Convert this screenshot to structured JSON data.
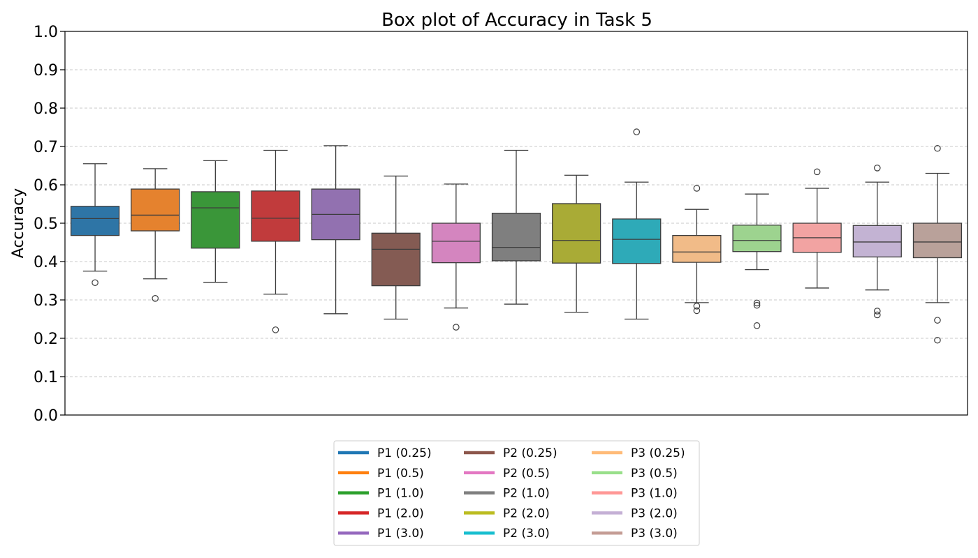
{
  "chart_data": {
    "type": "box",
    "title": "Box plot of Accuracy in Task 5",
    "xlabel": "",
    "ylabel": "Accuracy",
    "ylim": [
      0.0,
      1.0
    ],
    "yticks": [
      "0.0",
      "0.1",
      "0.2",
      "0.3",
      "0.4",
      "0.5",
      "0.6",
      "0.7",
      "0.8",
      "0.9",
      "1.0"
    ],
    "grid": "horizontal dashed",
    "legend_position": "below center",
    "series": [
      {
        "name": "P1 (0.25)",
        "color": "#2e75a6",
        "legend_color": "#1f77b4",
        "whislo": 0.375,
        "q1": 0.468,
        "median": 0.512,
        "q3": 0.544,
        "whishi": 0.655,
        "fliers": [
          0.345
        ]
      },
      {
        "name": "P1 (0.5)",
        "color": "#e5822e",
        "legend_color": "#ff7f0e",
        "whislo": 0.355,
        "q1": 0.48,
        "median": 0.521,
        "q3": 0.589,
        "whishi": 0.642,
        "fliers": [
          0.304
        ]
      },
      {
        "name": "P1 (1.0)",
        "color": "#3a9639",
        "legend_color": "#2ca02c",
        "whislo": 0.346,
        "q1": 0.435,
        "median": 0.54,
        "q3": 0.582,
        "whishi": 0.663,
        "fliers": []
      },
      {
        "name": "P1 (2.0)",
        "color": "#c13b3c",
        "legend_color": "#d62728",
        "whislo": 0.315,
        "q1": 0.453,
        "median": 0.513,
        "q3": 0.584,
        "whishi": 0.69,
        "fliers": [
          0.222
        ]
      },
      {
        "name": "P1 (3.0)",
        "color": "#9271b0",
        "legend_color": "#9467bd",
        "whislo": 0.264,
        "q1": 0.457,
        "median": 0.523,
        "q3": 0.589,
        "whishi": 0.702,
        "fliers": []
      },
      {
        "name": "P2 (0.25)",
        "color": "#845b53",
        "legend_color": "#8c564b",
        "whislo": 0.25,
        "q1": 0.337,
        "median": 0.432,
        "q3": 0.474,
        "whishi": 0.623,
        "fliers": []
      },
      {
        "name": "P2 (0.5)",
        "color": "#d485bf",
        "legend_color": "#e377c2",
        "whislo": 0.279,
        "q1": 0.397,
        "median": 0.453,
        "q3": 0.5,
        "whishi": 0.602,
        "fliers": [
          0.229
        ]
      },
      {
        "name": "P2 (1.0)",
        "color": "#7f7f7f",
        "legend_color": "#7f7f7f",
        "whislo": 0.289,
        "q1": 0.402,
        "median": 0.437,
        "q3": 0.526,
        "whishi": 0.69,
        "fliers": []
      },
      {
        "name": "P2 (2.0)",
        "color": "#a9ab36",
        "legend_color": "#bcbd22",
        "whislo": 0.268,
        "q1": 0.396,
        "median": 0.455,
        "q3": 0.551,
        "whishi": 0.625,
        "fliers": []
      },
      {
        "name": "P2 (3.0)",
        "color": "#2eaab8",
        "legend_color": "#17becf",
        "whislo": 0.25,
        "q1": 0.395,
        "median": 0.458,
        "q3": 0.511,
        "whishi": 0.607,
        "fliers": [
          0.738
        ]
      },
      {
        "name": "P3 (0.25)",
        "color": "#f1bb88",
        "legend_color": "#ffbb78",
        "whislo": 0.293,
        "q1": 0.398,
        "median": 0.425,
        "q3": 0.468,
        "whishi": 0.536,
        "fliers": [
          0.591,
          0.284,
          0.272
        ]
      },
      {
        "name": "P3 (0.5)",
        "color": "#9dd38f",
        "legend_color": "#98df8a",
        "whislo": 0.379,
        "q1": 0.426,
        "median": 0.455,
        "q3": 0.495,
        "whishi": 0.576,
        "fliers": [
          0.292,
          0.286,
          0.233
        ]
      },
      {
        "name": "P3 (1.0)",
        "color": "#f2a3a2",
        "legend_color": "#ff9896",
        "whislo": 0.331,
        "q1": 0.424,
        "median": 0.462,
        "q3": 0.5,
        "whishi": 0.591,
        "fliers": [
          0.634
        ]
      },
      {
        "name": "P3 (2.0)",
        "color": "#c3b3d3",
        "legend_color": "#c5b0d5",
        "whislo": 0.326,
        "q1": 0.412,
        "median": 0.451,
        "q3": 0.494,
        "whishi": 0.607,
        "fliers": [
          0.644,
          0.271,
          0.261
        ]
      },
      {
        "name": "P3 (3.0)",
        "color": "#b9a19a",
        "legend_color": "#c49c94",
        "whislo": 0.293,
        "q1": 0.41,
        "median": 0.451,
        "q3": 0.5,
        "whishi": 0.63,
        "fliers": [
          0.695,
          0.247,
          0.195
        ]
      }
    ]
  }
}
